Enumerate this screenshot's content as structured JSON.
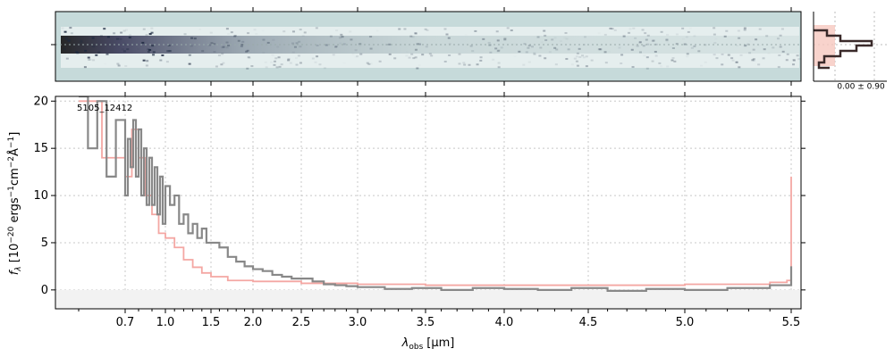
{
  "chart_data": {
    "type": "line",
    "object_id": "5105_12412",
    "xlabel_main": "λ",
    "xlabel_sub": "obs",
    "xlabel_unit": "[μm]",
    "ylabel_text": "f_λ [10^-20 ergs^-1 cm^-2 Å^-1]",
    "ylabel_parts": {
      "f": "f",
      "lam": "λ",
      "pre": " [10",
      "e1": "−20",
      "ergs": " ergs",
      "e2": "−1",
      "cm": "cm",
      "e3": "−2",
      "ang": "Å",
      "e4": "−1",
      "post": "]"
    },
    "ylim": [
      -2,
      20.5
    ],
    "yticks": [
      0,
      5,
      10,
      15,
      20
    ],
    "ytick_labels": [
      "0",
      "5",
      "10",
      "15",
      "20"
    ],
    "xticks": [
      0.7,
      1.0,
      1.5,
      2.0,
      2.5,
      3.0,
      3.5,
      4.0,
      4.5,
      5.0,
      5.5
    ],
    "xtick_labels": [
      "0.7",
      "1.0",
      "1.5",
      "2.0",
      "2.5",
      "3.0",
      "3.5",
      "4.0",
      "4.5",
      "5.0",
      "5.5"
    ],
    "x_axis_scale": "nonlinear (prism resolution)",
    "grid": true,
    "hist_label": "0.00 ± 0.90",
    "series": [
      {
        "color": "#888888",
        "x": [
          0.6,
          0.62,
          0.64,
          0.66,
          0.68,
          0.7,
          0.72,
          0.74,
          0.76,
          0.78,
          0.8,
          0.82,
          0.84,
          0.86,
          0.88,
          0.9,
          0.92,
          0.94,
          0.96,
          0.98,
          1.0,
          1.05,
          1.1,
          1.15,
          1.2,
          1.25,
          1.3,
          1.35,
          1.4,
          1.45,
          1.5,
          1.6,
          1.7,
          1.8,
          1.9,
          2.0,
          2.1,
          2.2,
          2.3,
          2.4,
          2.5,
          2.6,
          2.7,
          2.8,
          2.9,
          3.0,
          3.2,
          3.4,
          3.6,
          3.8,
          4.0,
          4.2,
          4.4,
          4.6,
          4.8,
          5.0,
          5.2,
          5.4,
          5.5
        ],
        "y": [
          20.5,
          15,
          20,
          12,
          18,
          10,
          16,
          13,
          18,
          12,
          17,
          10,
          15,
          9,
          14,
          9,
          13,
          8,
          12,
          7,
          11,
          9,
          10,
          7,
          8,
          6,
          7,
          5.5,
          6.5,
          5,
          5,
          4.5,
          3.5,
          3,
          2.5,
          2.2,
          2,
          1.6,
          1.4,
          1.2,
          1.2,
          0.9,
          0.6,
          0.5,
          0.4,
          0.3,
          0.1,
          0.2,
          0,
          0.2,
          0.1,
          0,
          0.2,
          -0.1,
          0.1,
          0,
          0.2,
          0.5,
          2.5
        ]
      },
      {
        "color": "#f4a7a3",
        "x": [
          0.6,
          0.65,
          0.7,
          0.75,
          0.8,
          0.85,
          0.9,
          0.95,
          1.0,
          1.1,
          1.2,
          1.3,
          1.4,
          1.5,
          1.7,
          2.0,
          2.5,
          3.0,
          3.5,
          4.0,
          4.5,
          5.0,
          5.4,
          5.48,
          5.5
        ],
        "y": [
          20,
          14,
          12,
          17,
          14,
          10,
          8,
          6,
          5.5,
          4.5,
          3.2,
          2.4,
          1.8,
          1.4,
          1.0,
          0.9,
          0.7,
          0.6,
          0.5,
          0.5,
          0.5,
          0.6,
          0.8,
          1.0,
          12
        ]
      }
    ]
  }
}
